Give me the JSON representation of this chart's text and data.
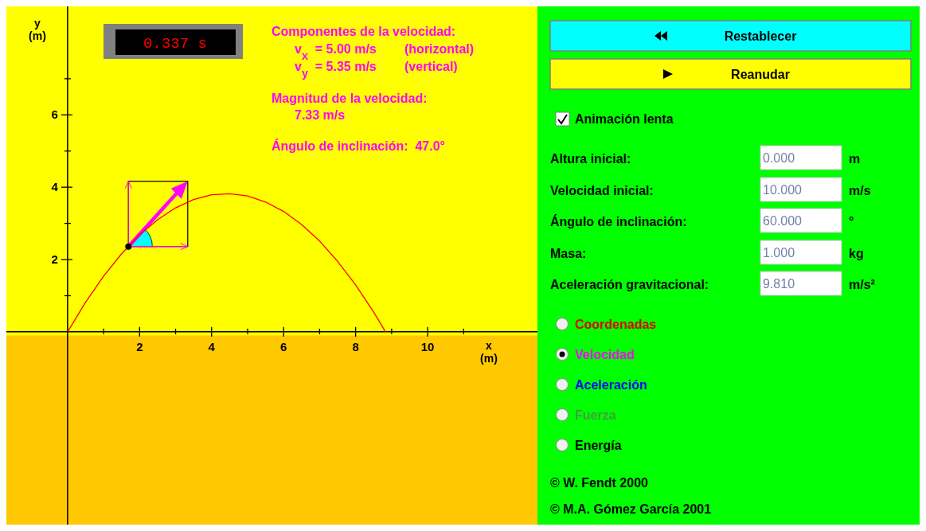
{
  "chart_data": [
    {
      "type": "line",
      "xlabel": "x (m)",
      "ylabel": "y (m)",
      "xlim": [
        -1.7,
        13.05
      ],
      "ylim": [
        -5.33,
        9.0
      ],
      "xticks": [
        {
          "value": 1,
          "label": null
        },
        2,
        {
          "value": 3,
          "label": null
        },
        4,
        {
          "value": 5,
          "label": null
        },
        6,
        {
          "value": 7,
          "label": null
        },
        8,
        {
          "value": 9,
          "label": null
        },
        10,
        {
          "value": 11,
          "label": null
        }
      ],
      "yticks": [
        {
          "value": 1,
          "label": null
        },
        2,
        {
          "value": 3,
          "label": null
        },
        4,
        {
          "value": 5,
          "label": null
        },
        6,
        {
          "value": 7,
          "label": null
        }
      ],
      "bands": [
        {
          "axis": "y",
          "from": -5.33,
          "to": -0.1,
          "color": "#ffc800"
        }
      ],
      "series": [
        {
          "type": "line",
          "color": "#ff0000",
          "x": [
            0,
            0.5,
            1,
            1.5,
            2,
            2.5,
            3,
            3.5,
            4,
            4.5,
            5,
            5.5,
            6,
            6.5,
            7,
            7.5,
            8,
            8.5,
            8.83
          ],
          "values": [
            0,
            0.82,
            1.54,
            2.16,
            2.68,
            3.1,
            3.43,
            3.66,
            3.79,
            3.82,
            3.76,
            3.59,
            3.33,
            2.97,
            2.51,
            1.95,
            1.3,
            0.55,
            0
          ]
        },
        {
          "type": "scatter",
          "color": "#000000",
          "marker": "circle",
          "x": [
            1.69
          ],
          "values": [
            2.36
          ]
        }
      ],
      "annotations": [
        "0.337 s",
        "Componentes de la velocidad:",
        "v$_{x}$ = 5.00 m/s",
        "(horizontal)",
        "v$_{y}$ = 5.35 m/s",
        "(vertical)",
        "Magnitud de la velocidad:",
        "7.33 m/s",
        "Ángulo de inclinación:  47.0°"
      ]
    },
    {
      "type": "other",
      "annotations": [
        "Restablecer",
        "Reanudar",
        "Animación lenta",
        "Altura inicial:",
        "0.000",
        "m",
        "Velocidad inicial:",
        "10.000",
        "m/s",
        "Ángulo de inclinación:",
        "60.000",
        "°",
        "Masa:",
        "1.000",
        "kg",
        "Aceleración gravitacional:",
        "9.810",
        "m/s²",
        "Coordenadas",
        "Velocidad",
        "Aceleración",
        "Fuerza",
        "Energía",
        "© W. Fendt 2000",
        "© M.A. Gómez García 2001"
      ]
    }
  ]
}
